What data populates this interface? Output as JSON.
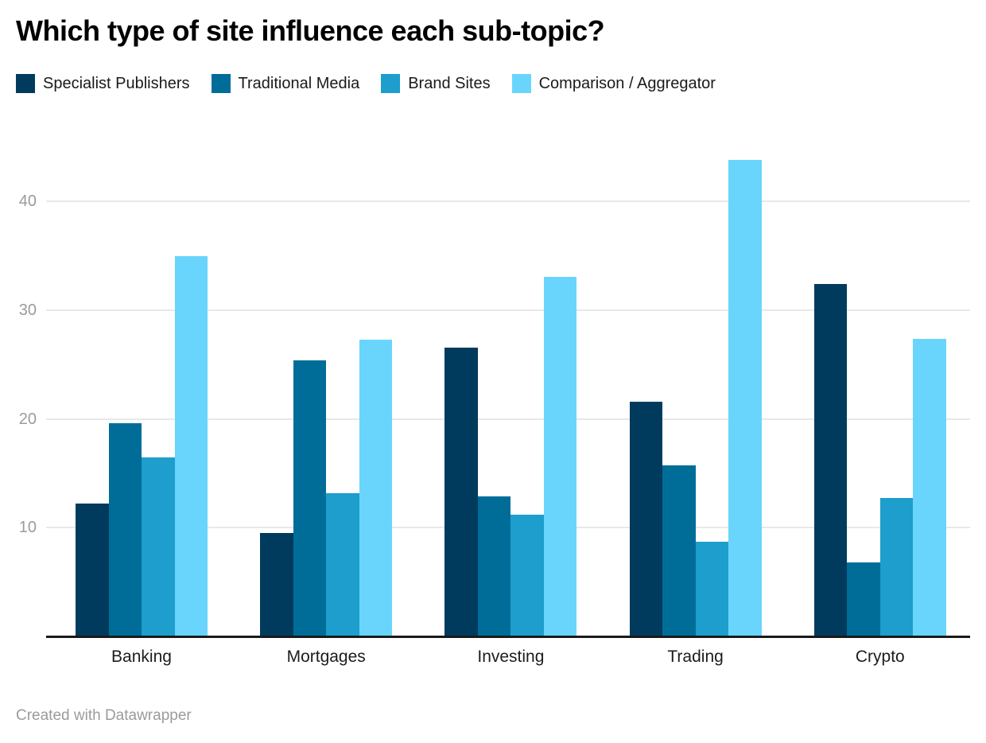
{
  "title": "Which type of site influence each sub-topic?",
  "footer": {
    "text": "Created with Datawrapper"
  },
  "colors": {
    "axis_line": "#1a1a1a",
    "gridline": "#e8e8e8",
    "tick_text": "#9b9b9b",
    "category_text": "#1c1c1c",
    "legend_text": "#1a1a1a",
    "title_text": "#000000",
    "background": "#ffffff"
  },
  "chart_data": {
    "type": "bar",
    "title": "Which type of site influence each sub-topic?",
    "categories": [
      "Banking",
      "Mortgages",
      "Investing",
      "Trading",
      "Crypto"
    ],
    "series": [
      {
        "name": "Specialist Publishers",
        "color": "#003b5e",
        "values": [
          12.2,
          9.5,
          26.6,
          21.6,
          32.4
        ]
      },
      {
        "name": "Traditional Media",
        "color": "#006d99",
        "values": [
          19.6,
          25.4,
          12.9,
          15.7,
          6.8
        ]
      },
      {
        "name": "Brand Sites",
        "color": "#1d9ecd",
        "values": [
          16.5,
          13.2,
          11.2,
          8.7,
          12.7
        ]
      },
      {
        "name": "Comparison / Aggregator",
        "color": "#6ad5fc",
        "values": [
          35.0,
          27.3,
          33.1,
          43.8,
          27.4
        ]
      }
    ],
    "xlabel": "",
    "ylabel": "",
    "y_ticks": [
      10,
      20,
      30,
      40
    ],
    "ylim": [
      0,
      45
    ],
    "grid": true,
    "legend_position": "top",
    "attribution": "Created with Datawrapper"
  }
}
